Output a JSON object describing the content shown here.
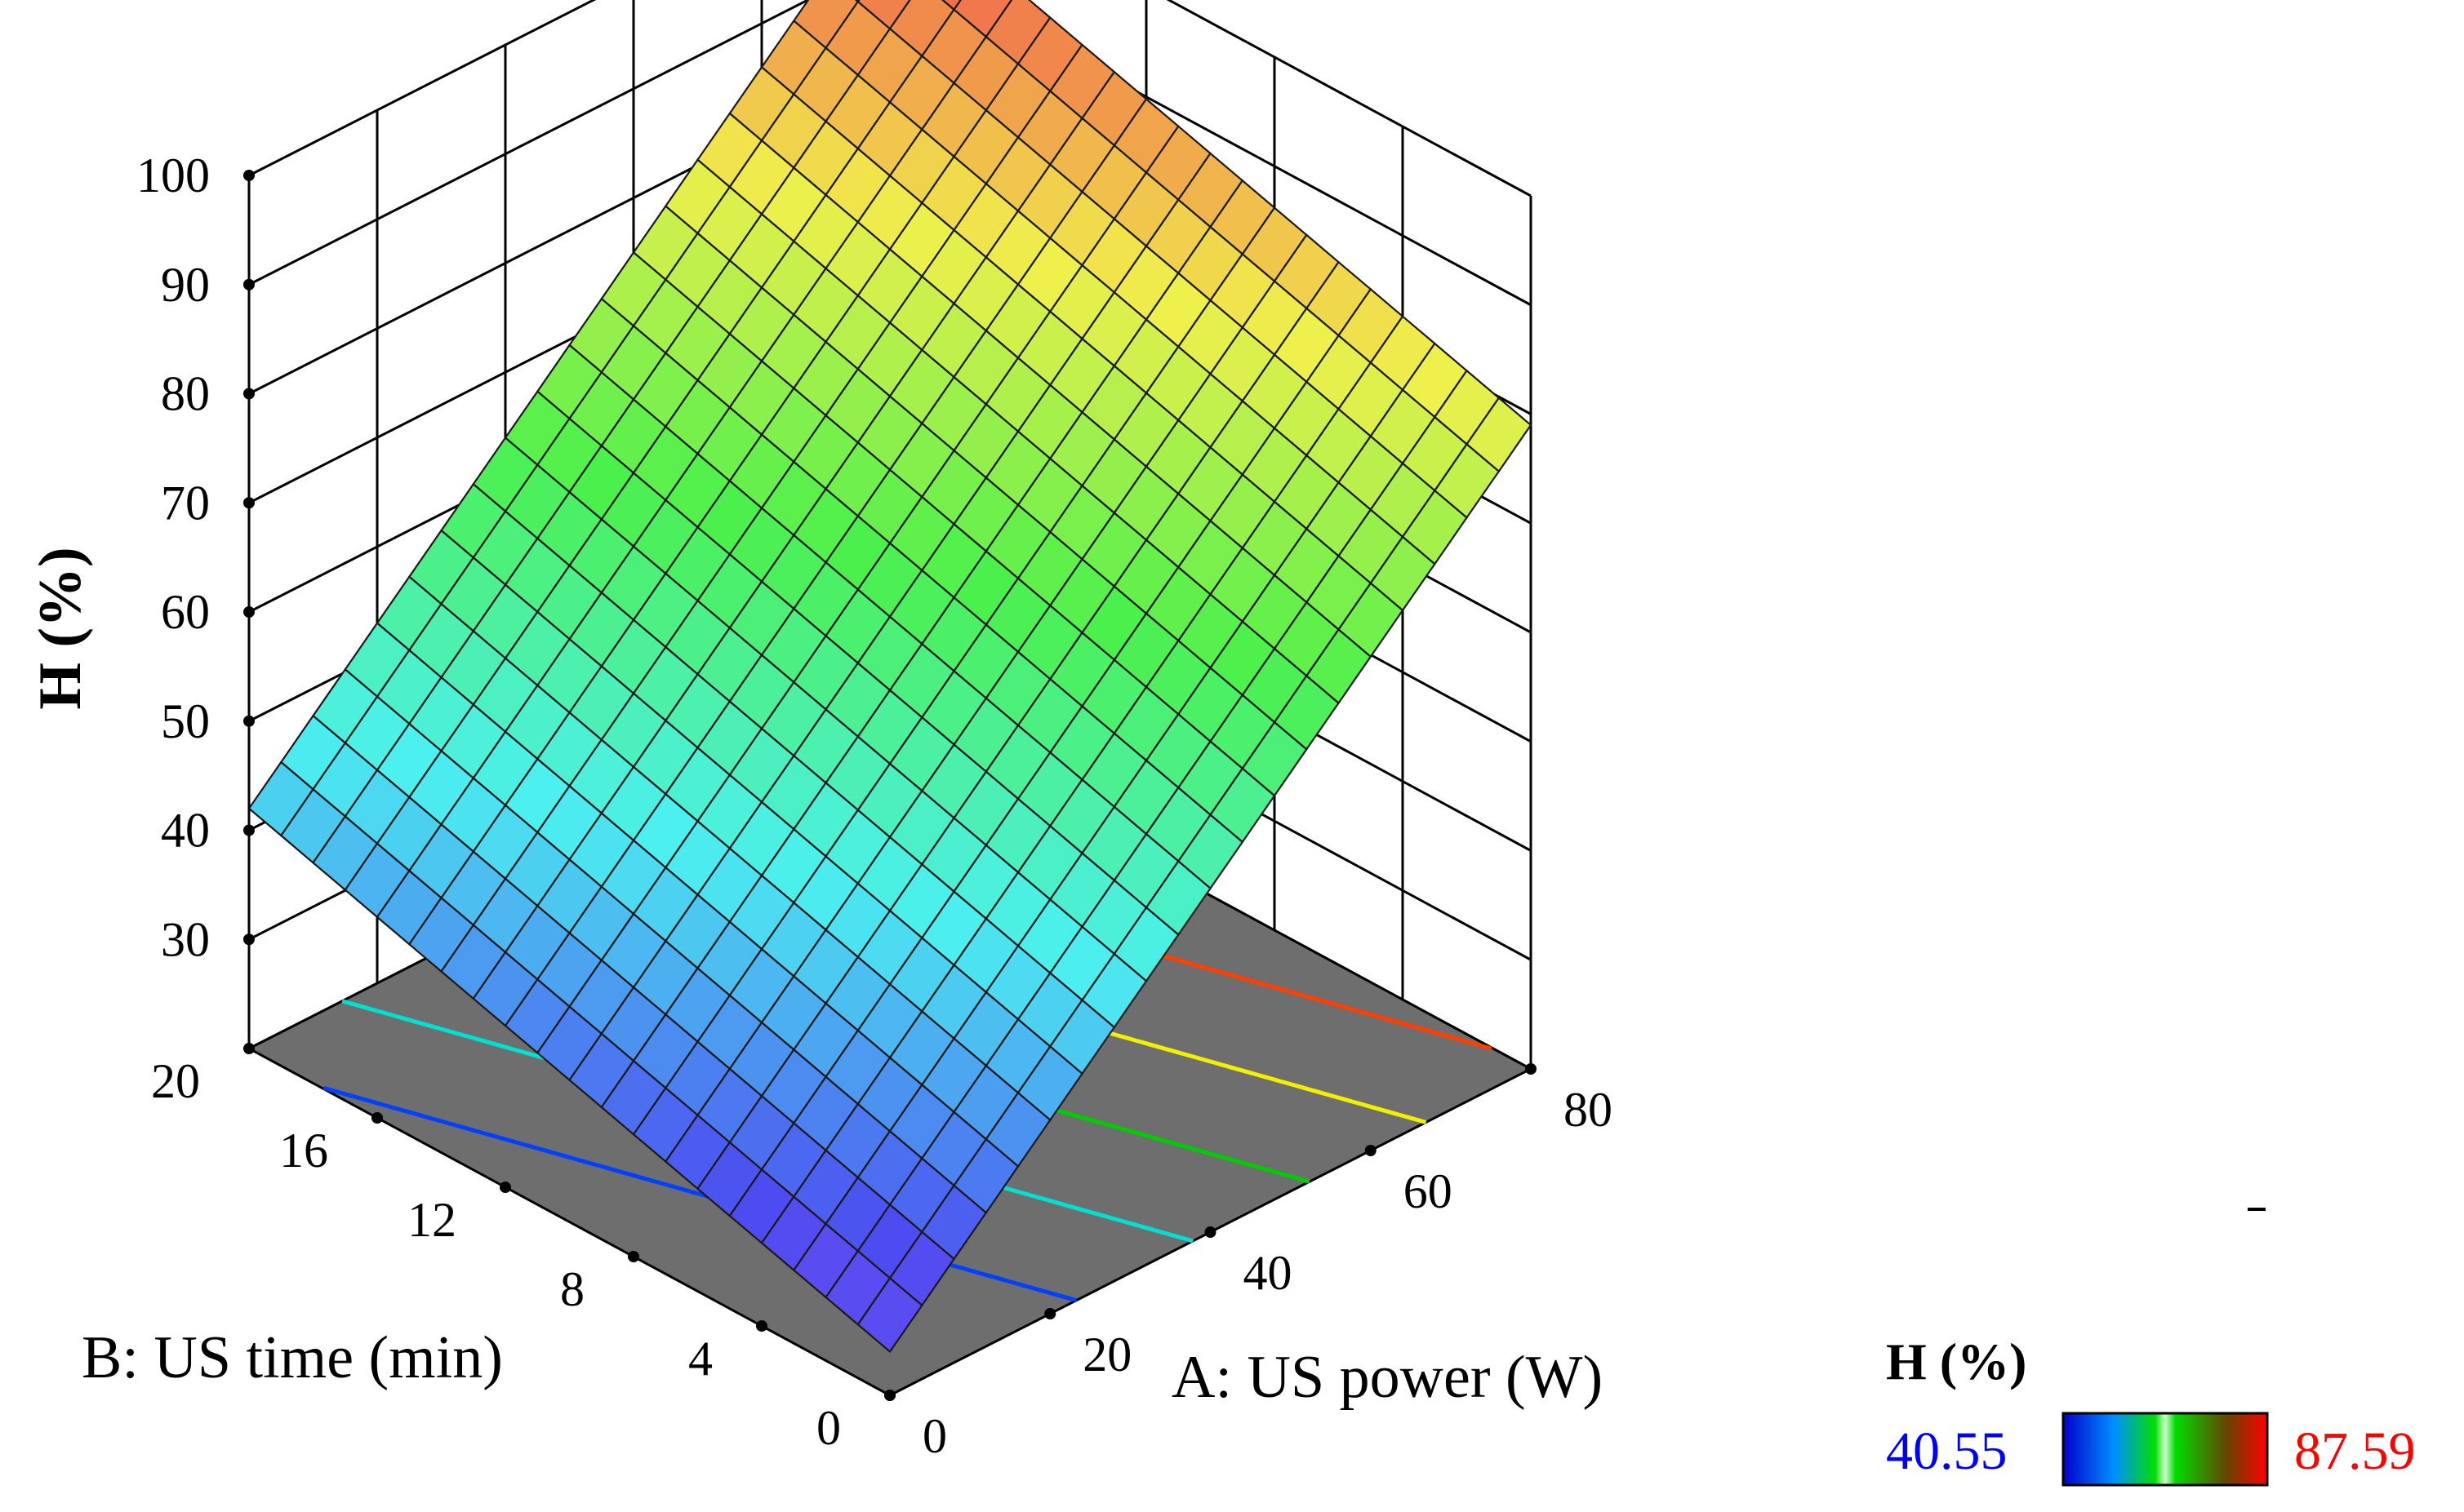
{
  "chart_data": {
    "type": "surface3d",
    "zlabel": "H (%)",
    "xlabel": "A: US power (W)",
    "ylabel": "B: US time (min)",
    "xlim": [
      0,
      80
    ],
    "ylim": [
      0,
      20
    ],
    "zlim": [
      20,
      100
    ],
    "x_ticks": [
      "0",
      "20",
      "40",
      "60",
      "80"
    ],
    "y_ticks": [
      "0",
      "4",
      "8",
      "12",
      "16",
      "20"
    ],
    "z_ticks": [
      "30",
      "40",
      "50",
      "60",
      "70",
      "80",
      "90",
      "100"
    ],
    "surface_corners": [
      {
        "x": 0,
        "y": 0,
        "z": 24
      },
      {
        "x": 80,
        "y": 0,
        "z": 79
      },
      {
        "x": 0,
        "y": 20,
        "z": 42
      },
      {
        "x": 80,
        "y": 20,
        "z": 97
      }
    ],
    "surface_grid": 20,
    "contour_levels": [
      {
        "z": 40,
        "color": "#0040ff"
      },
      {
        "z": 50,
        "color": "#00e0d0"
      },
      {
        "z": 60,
        "color": "#00cc00"
      },
      {
        "z": 70,
        "color": "#f0f000"
      },
      {
        "z": 80,
        "color": "#ff4000"
      }
    ],
    "legend": {
      "title": "H (%)",
      "min": "40.55",
      "max": "87.59",
      "min_color": "#0000ff",
      "max_color": "#ff0000",
      "colors": [
        "#0000cc",
        "#00a0ff",
        "#00dd00",
        "#ffffff",
        "#00dd00",
        "#663300",
        "#ff0000"
      ]
    },
    "floor_color": "#6e6e6e"
  }
}
